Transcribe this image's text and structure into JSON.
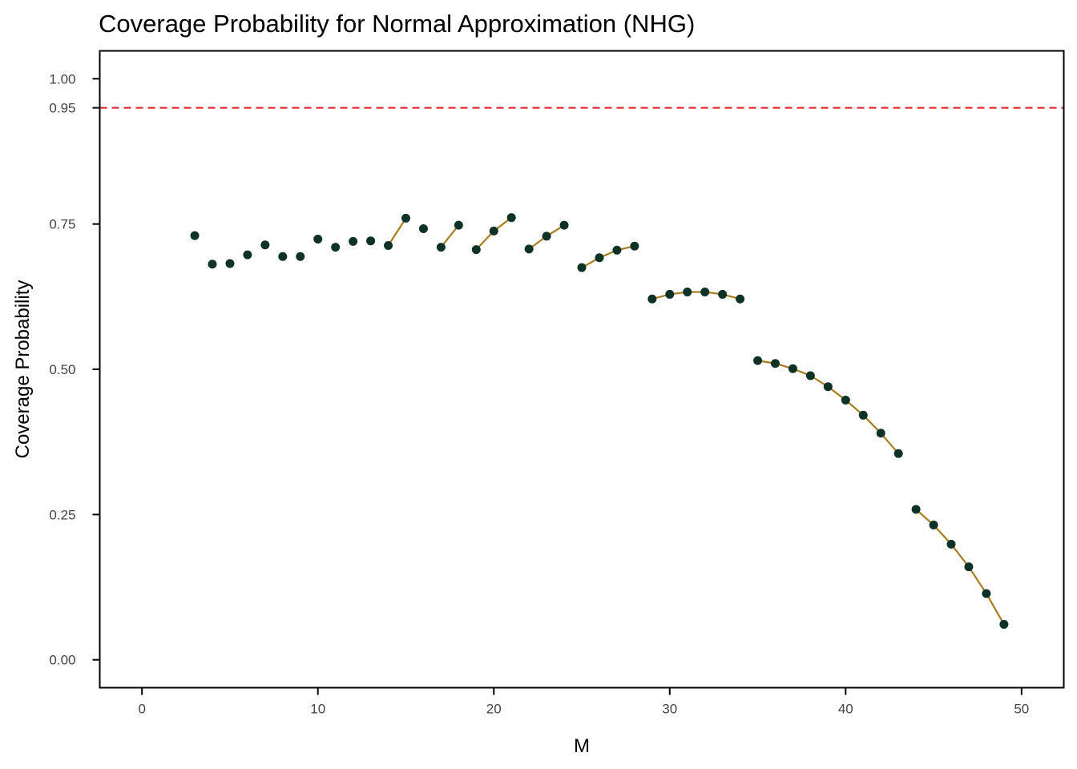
{
  "chart_data": {
    "type": "line",
    "title": "Coverage Probability for Normal Approximation (NHG)",
    "xlabel": "M",
    "ylabel": "Coverage Probability",
    "xlim": [
      -2.4,
      52.4
    ],
    "ylim": [
      -0.048,
      1.048
    ],
    "xticks": [
      0,
      10,
      20,
      30,
      40,
      50
    ],
    "yticks": [
      0.0,
      0.25,
      0.5,
      0.75,
      0.95,
      1.0
    ],
    "ytick_labels": [
      "0.00",
      "0.25",
      "0.50",
      "0.75",
      "0.95",
      "1.00"
    ],
    "reference_line": {
      "y": 0.95,
      "style": "dashed",
      "color": "#e31a1c"
    },
    "line_color": "#a87d1e",
    "point_color": "#0e3326",
    "grid": false,
    "legend": "none",
    "segments": [
      {
        "x": [
          3
        ],
        "y": [
          0.73
        ]
      },
      {
        "x": [
          4
        ],
        "y": [
          0.681
        ]
      },
      {
        "x": [
          5
        ],
        "y": [
          0.682
        ]
      },
      {
        "x": [
          6
        ],
        "y": [
          0.697
        ]
      },
      {
        "x": [
          7
        ],
        "y": [
          0.714
        ]
      },
      {
        "x": [
          8
        ],
        "y": [
          0.694
        ]
      },
      {
        "x": [
          9
        ],
        "y": [
          0.694
        ]
      },
      {
        "x": [
          10
        ],
        "y": [
          0.724
        ]
      },
      {
        "x": [
          11
        ],
        "y": [
          0.71
        ]
      },
      {
        "x": [
          12
        ],
        "y": [
          0.72
        ]
      },
      {
        "x": [
          13
        ],
        "y": [
          0.721
        ]
      },
      {
        "x": [
          14,
          15
        ],
        "y": [
          0.713,
          0.76
        ]
      },
      {
        "x": [
          16
        ],
        "y": [
          0.742
        ]
      },
      {
        "x": [
          17,
          18
        ],
        "y": [
          0.71,
          0.748
        ]
      },
      {
        "x": [
          19,
          20,
          21
        ],
        "y": [
          0.706,
          0.738,
          0.761
        ]
      },
      {
        "x": [
          22,
          23,
          24
        ],
        "y": [
          0.707,
          0.729,
          0.748
        ]
      },
      {
        "x": [
          25,
          26,
          27,
          28
        ],
        "y": [
          0.675,
          0.692,
          0.705,
          0.712
        ]
      },
      {
        "x": [
          29,
          30,
          31,
          32,
          33,
          34
        ],
        "y": [
          0.621,
          0.629,
          0.633,
          0.633,
          0.629,
          0.621
        ]
      },
      {
        "x": [
          35,
          36,
          37,
          38,
          39,
          40,
          41,
          42,
          43
        ],
        "y": [
          0.515,
          0.51,
          0.501,
          0.489,
          0.47,
          0.447,
          0.421,
          0.39,
          0.355
        ]
      },
      {
        "x": [
          44,
          45,
          46,
          47,
          48,
          49
        ],
        "y": [
          0.259,
          0.232,
          0.199,
          0.16,
          0.114,
          0.061
        ]
      }
    ]
  }
}
